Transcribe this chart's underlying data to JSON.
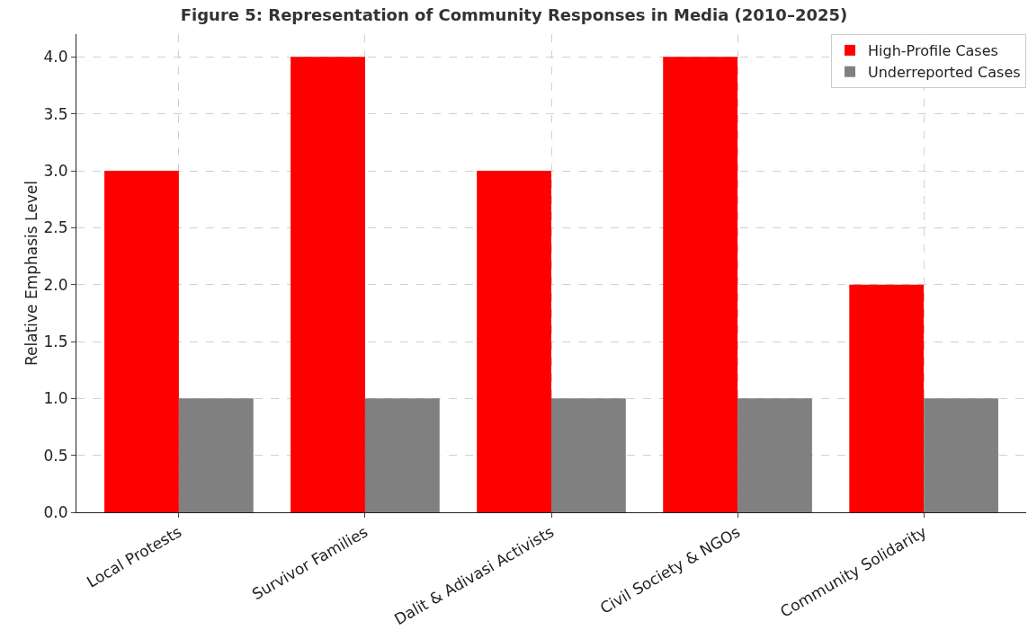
{
  "chart_data": {
    "type": "bar",
    "title": "Figure 5: Representation of Community Responses in Media (2010–2025)",
    "ylabel": "Relative Emphasis Level",
    "categories": [
      "Local Protests",
      "Survivor Families",
      "Dalit & Adivasi Activists",
      "Civil Society & NGOs",
      "Community Solidarity"
    ],
    "series": [
      {
        "name": "High-Profile Cases",
        "color": "#ff0000",
        "values": [
          3,
          4,
          3,
          4,
          2
        ]
      },
      {
        "name": "Underreported Cases",
        "color": "#808080",
        "values": [
          1,
          1,
          1,
          1,
          1
        ]
      }
    ],
    "ylim": [
      0,
      4.2
    ],
    "yticks": [
      {
        "value": 0,
        "label": "0.0"
      },
      {
        "value": 0.5,
        "label": "0.5"
      },
      {
        "value": 1,
        "label": "1.0"
      },
      {
        "value": 1.5,
        "label": "1.5"
      },
      {
        "value": 2,
        "label": "2.0"
      },
      {
        "value": 2.5,
        "label": "2.5"
      },
      {
        "value": 3,
        "label": "3.0"
      },
      {
        "value": 3.5,
        "label": "3.5"
      },
      {
        "value": 4,
        "label": "4.0"
      }
    ],
    "grid": true,
    "legend": "top right"
  }
}
